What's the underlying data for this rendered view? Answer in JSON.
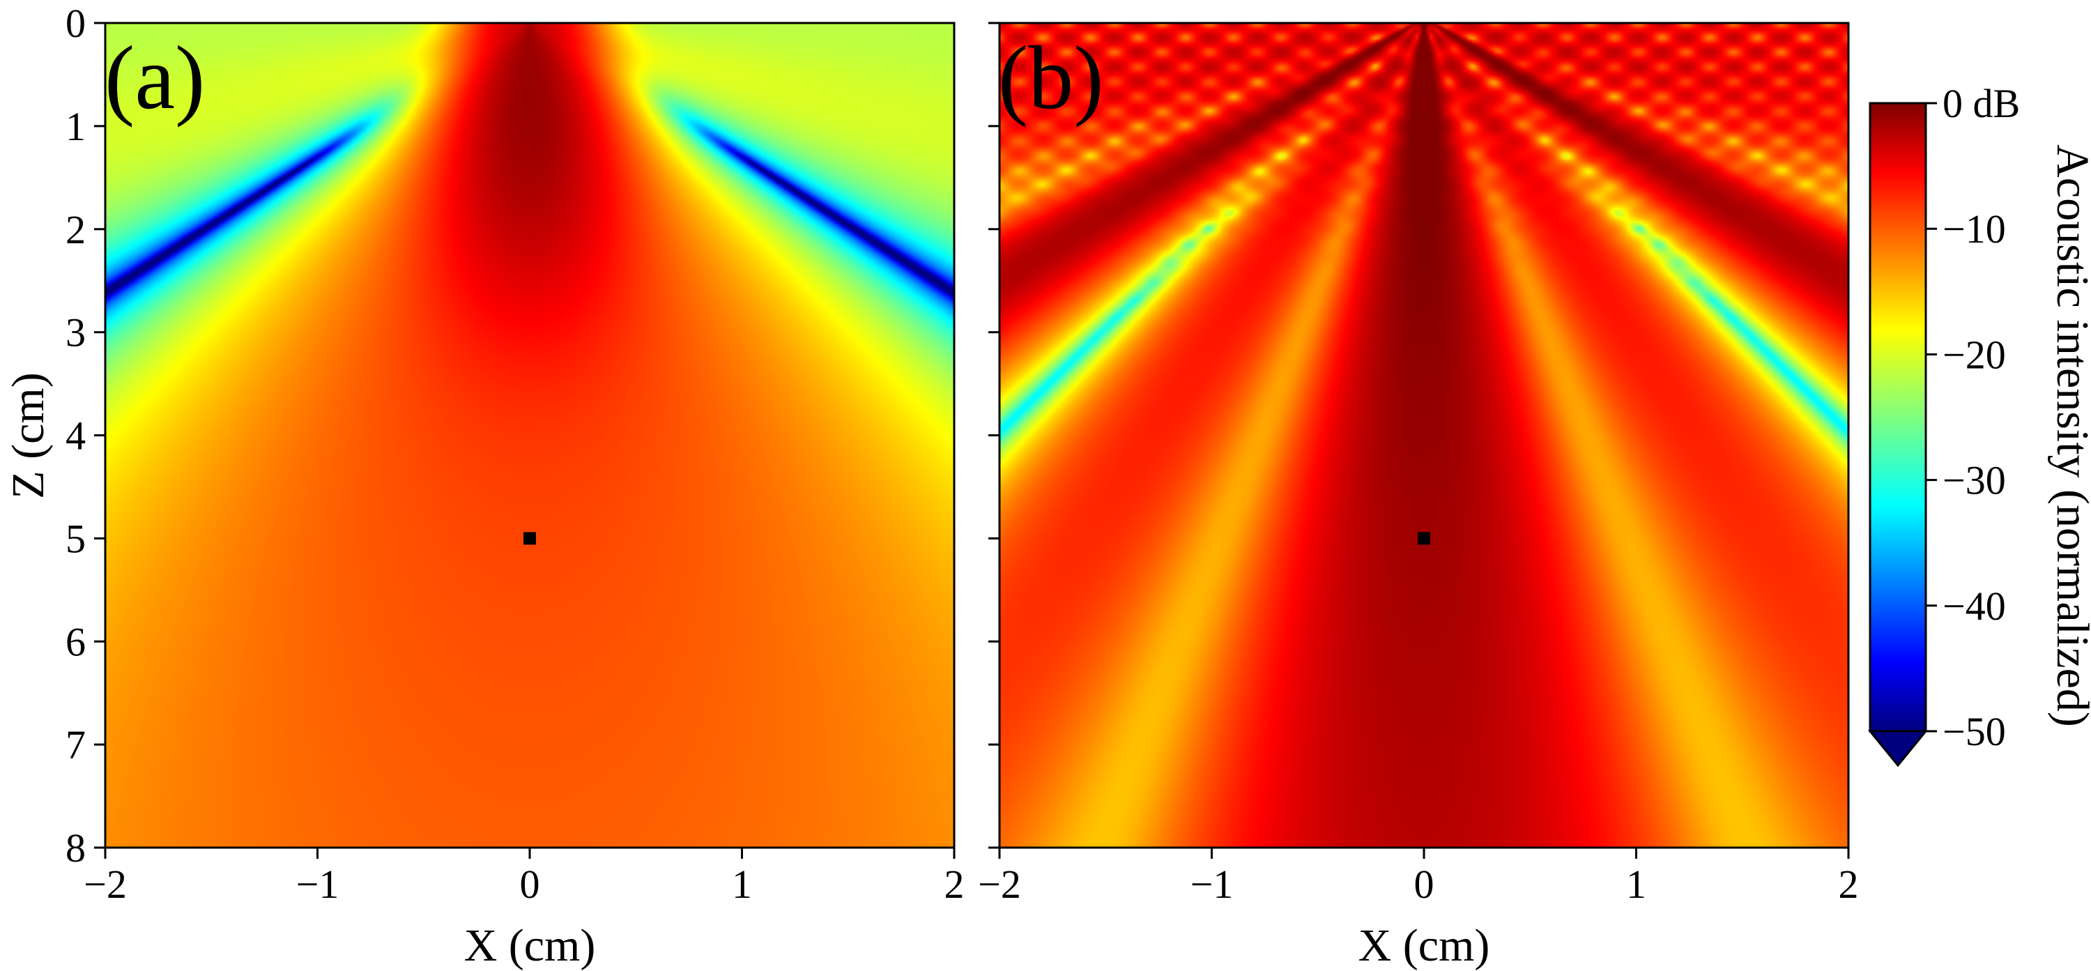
{
  "chart_data": [
    {
      "type": "heatmap",
      "panel_label": "(a)",
      "xlabel": "X (cm)",
      "ylabel": "Z (cm)",
      "xlim": [
        -2,
        2
      ],
      "ylim": [
        0,
        8
      ],
      "y_inverted": true,
      "x_ticks": [
        -2,
        -1,
        0,
        1,
        2
      ],
      "x_tick_labels": [
        "−2",
        "−1",
        "0",
        "1",
        "2"
      ],
      "y_ticks": [
        0,
        1,
        2,
        3,
        4,
        5,
        6,
        7,
        8
      ],
      "y_tick_labels": [
        "0",
        "1",
        "2",
        "3",
        "4",
        "5",
        "6",
        "7",
        "8"
      ],
      "focal_marker": {
        "x": 0,
        "z": 5
      }
    },
    {
      "type": "heatmap",
      "panel_label": "(b)",
      "xlabel": "X (cm)",
      "xlim": [
        -2,
        2
      ],
      "ylim": [
        0,
        8
      ],
      "y_inverted": true,
      "x_ticks": [
        -2,
        -1,
        0,
        1,
        2
      ],
      "x_tick_labels": [
        "−2",
        "−1",
        "0",
        "1",
        "2"
      ],
      "y_ticks": [
        0,
        1,
        2,
        3,
        4,
        5,
        6,
        7,
        8
      ],
      "focal_marker": {
        "x": 0,
        "z": 5
      }
    }
  ],
  "colorbar": {
    "title": "Acoustic intensity (normalized)",
    "range": [
      -50,
      0
    ],
    "ticks": [
      0,
      -10,
      -20,
      -30,
      -40,
      -50
    ],
    "tick_labels": [
      "0 dB",
      "−10",
      "−20",
      "−30",
      "−40",
      "−50"
    ],
    "colormap": [
      "#00007f",
      "#0000ff",
      "#007fff",
      "#00ffff",
      "#7fff7f",
      "#ffff00",
      "#ff7f00",
      "#ff0000",
      "#7f0000"
    ],
    "extend": "min"
  }
}
